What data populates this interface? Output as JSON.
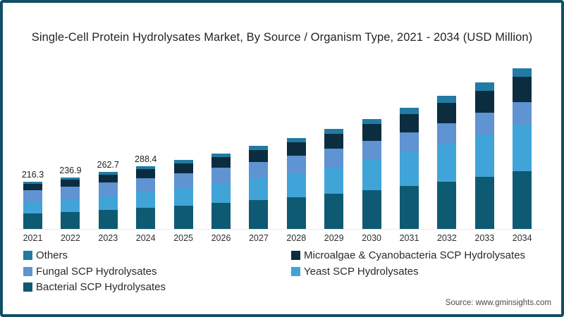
{
  "frame": {
    "border_color": "#124f68",
    "background": "#ffffff"
  },
  "title": "Single-Cell Protein Hydrolysates Market, By Source / Organism Type, 2021 - 2034 (USD Million)",
  "source_note": "Source: www.gminsights.com",
  "chart_data": {
    "type": "bar",
    "variant": "stacked-vertical",
    "title": "Single-Cell Protein Hydrolysates Market, By Source / Organism Type, 2021 - 2034 (USD Million)",
    "unit": "USD Million",
    "xlabel": "",
    "ylabel": "",
    "categories": [
      "2021",
      "2022",
      "2023",
      "2024",
      "2025",
      "2026",
      "2027",
      "2028",
      "2029",
      "2030",
      "2031",
      "2032",
      "2033",
      "2034"
    ],
    "stack_order_bottom_to_top": [
      "bacterial",
      "yeast",
      "fungal",
      "microalgae",
      "others"
    ],
    "series": [
      {
        "key": "bacterial",
        "name": "Bacterial SCP Hydrolysates",
        "color": "#0e5a73",
        "values": [
          71.4,
          78.7,
          87.9,
          97.2,
          107.5,
          119.0,
          131.7,
          145.7,
          161.2,
          178.4,
          197.3,
          218.2,
          241.4,
          267.0
        ]
      },
      {
        "key": "yeast",
        "name": "Yeast SCP Hydrolysates",
        "color": "#41a4d8",
        "values": [
          51.9,
          57.8,
          65.1,
          72.5,
          81.0,
          90.3,
          100.8,
          112.3,
          125.3,
          139.6,
          155.6,
          173.3,
          193.1,
          215.1
        ]
      },
      {
        "key": "fungal",
        "name": "Fungal SCP Hydrolysates",
        "color": "#5f93d1",
        "values": [
          54.1,
          57.2,
          61.2,
          64.8,
          68.5,
          72.4,
          76.3,
          80.3,
          84.3,
          88.4,
          92.4,
          96.3,
          100.2,
          103.8
        ]
      },
      {
        "key": "microalgae",
        "name": "Microalgae & Cyanobacteria SCP Hydrolysates",
        "color": "#0c2d40",
        "values": [
          30.3,
          33.4,
          37.4,
          41.4,
          45.8,
          50.8,
          56.3,
          62.3,
          69.0,
          76.5,
          84.6,
          93.8,
          103.8,
          114.9
        ]
      },
      {
        "key": "others",
        "name": "Others",
        "color": "#217ba3",
        "values": [
          8.6,
          9.8,
          11.1,
          12.5,
          14.1,
          16.0,
          18.0,
          20.2,
          22.8,
          25.6,
          28.8,
          32.4,
          36.3,
          40.8
        ]
      }
    ],
    "totals": [
      216.3,
      236.9,
      262.7,
      288.4,
      316.9,
      348.5,
      383.1,
      420.8,
      462.6,
      508.5,
      558.7,
      614.0,
      674.8,
      741.6
    ],
    "shown_total_labels": [
      "216.3",
      "236.9",
      "262.7",
      "288.4",
      "",
      "",
      "",
      "",
      "",
      "",
      "",
      "",
      "",
      ""
    ],
    "ylim": [
      0,
      780
    ],
    "grid": false,
    "legend_position": "bottom-left-two-columns"
  },
  "legend": {
    "columns": [
      {
        "items": [
          {
            "label": "Others",
            "series": "others"
          },
          {
            "label": "Fungal SCP Hydrolysates",
            "series": "fungal"
          },
          {
            "label": "Bacterial SCP Hydrolysates",
            "series": "bacterial"
          }
        ]
      },
      {
        "items": [
          {
            "label": "Microalgae & Cyanobacteria SCP Hydrolysates",
            "series": "microalgae"
          },
          {
            "label": "Yeast SCP Hydrolysates",
            "series": "yeast"
          }
        ]
      }
    ]
  }
}
